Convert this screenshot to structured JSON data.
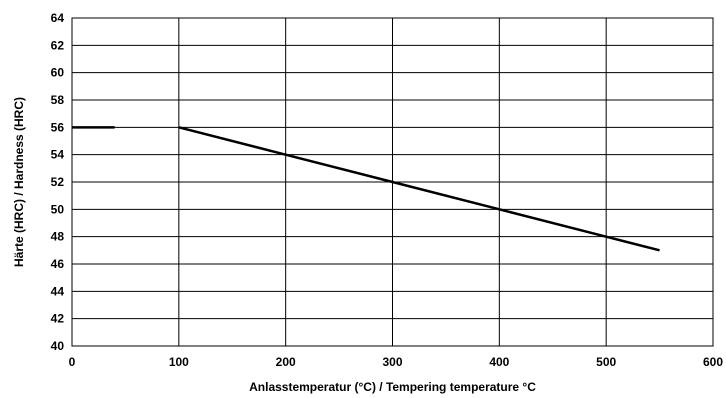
{
  "chart_data": {
    "type": "line",
    "xlabel": "Anlasstemperatur (°C) / Tempering temperature °C",
    "ylabel": "Härte (HRC) / Hardness (HRC)",
    "xlim": [
      0,
      600
    ],
    "ylim": [
      40,
      64
    ],
    "xticks": [
      0,
      100,
      200,
      300,
      400,
      500,
      600
    ],
    "yticks": [
      40,
      42,
      44,
      46,
      48,
      50,
      52,
      54,
      56,
      58,
      60,
      62,
      64
    ],
    "grid": true,
    "series": [
      {
        "x": [
          0,
          40
        ],
        "y": [
          56,
          56
        ]
      },
      {
        "x": [
          100,
          200,
          300,
          400,
          500,
          550
        ],
        "y": [
          56,
          54,
          52,
          50,
          48,
          47
        ]
      }
    ],
    "colors": {
      "line": "#000000",
      "grid": "#000000",
      "background": "#ffffff"
    }
  }
}
